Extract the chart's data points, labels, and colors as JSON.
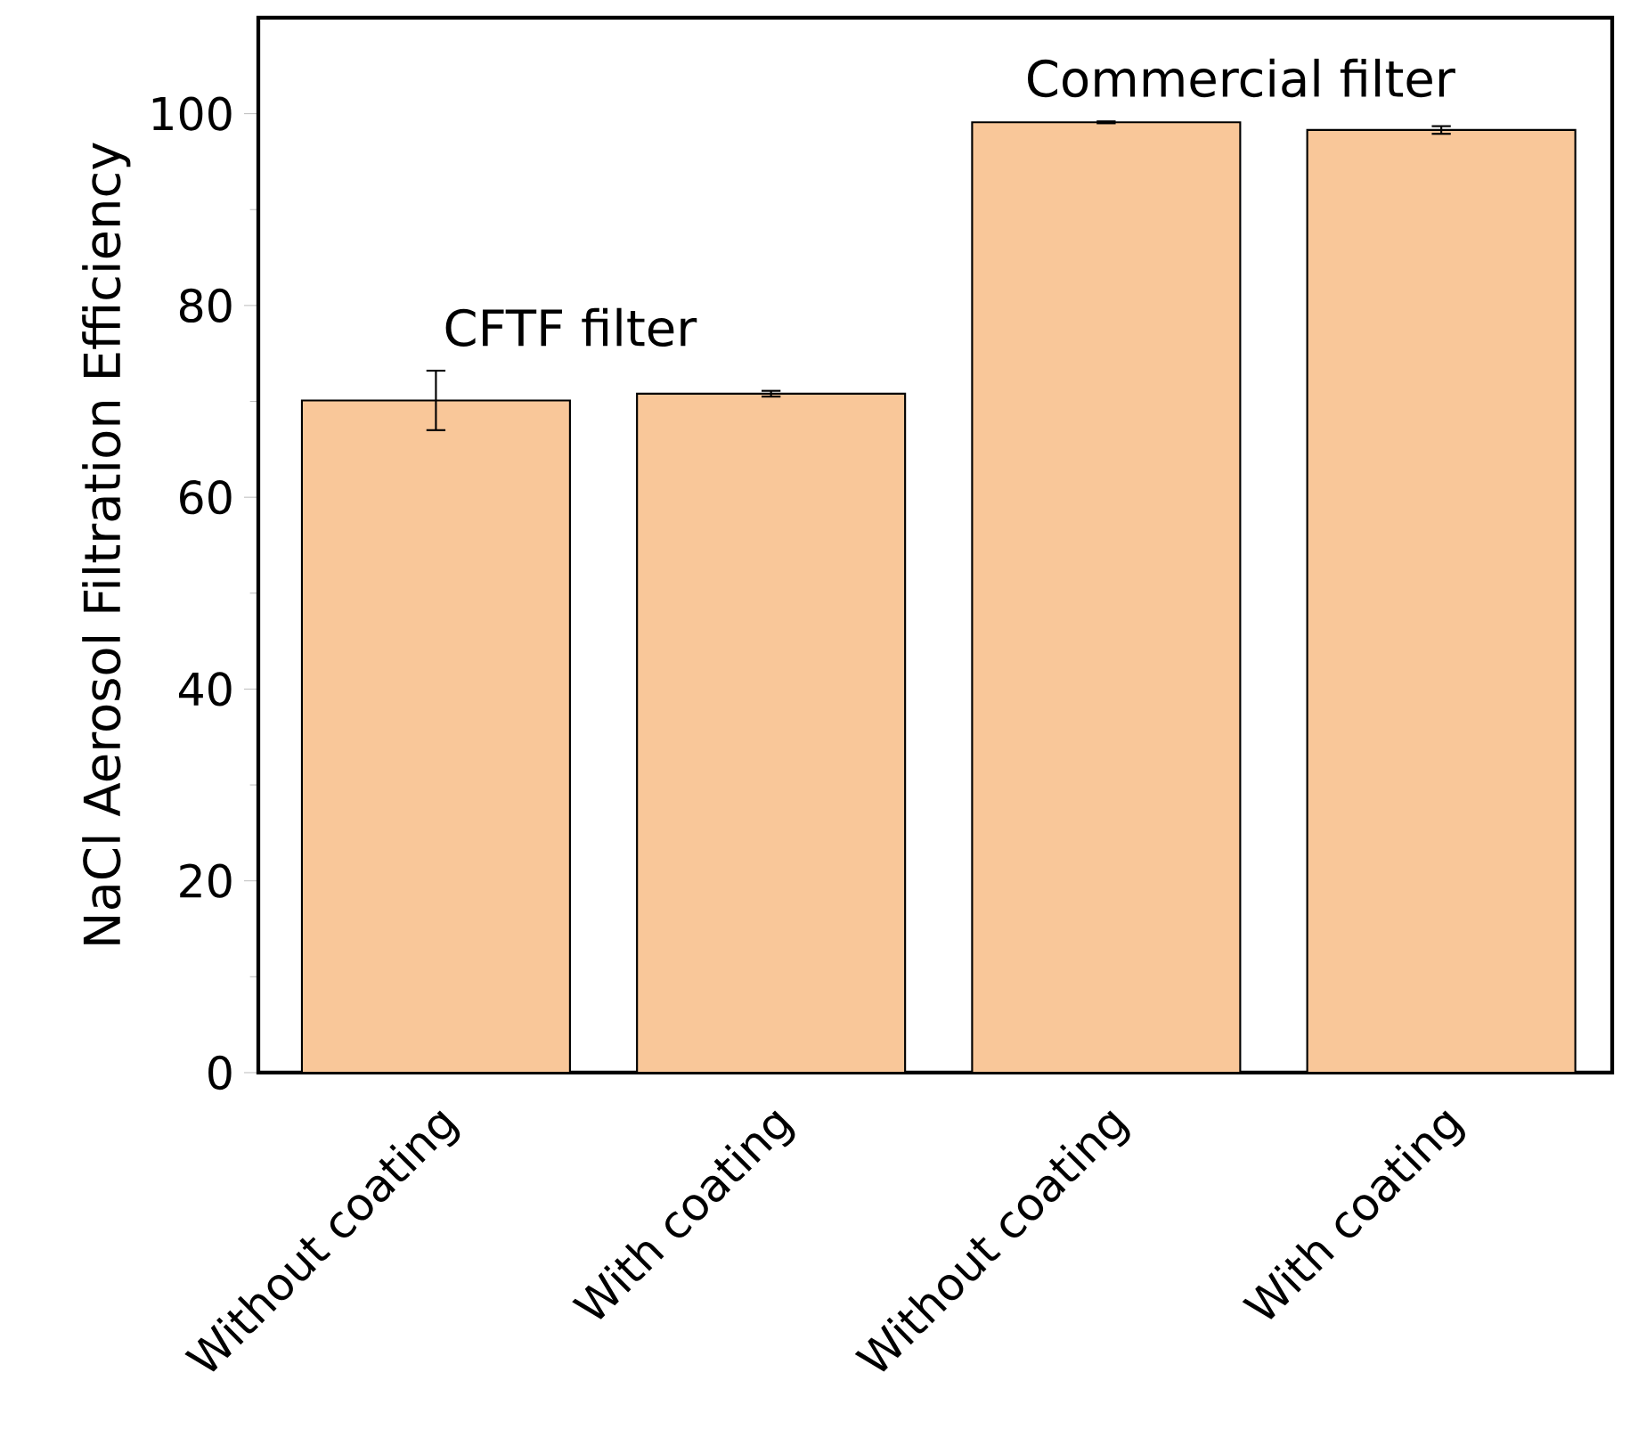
{
  "chart_data": {
    "type": "bar",
    "ylabel": "NaCl Aerosol Filtration Efficiency",
    "categories": [
      "Without coating",
      "With coating",
      "Without coating",
      "With coating"
    ],
    "values": [
      70.1,
      70.8,
      99.1,
      98.3
    ],
    "errors": [
      3.1,
      0.3,
      0.1,
      0.4
    ],
    "color": "#f9c799",
    "ylim": [
      0,
      110
    ],
    "yticks": [
      0,
      20,
      40,
      60,
      80,
      100
    ],
    "annotations": [
      "CFTF filter",
      "Commercial filter"
    ]
  }
}
